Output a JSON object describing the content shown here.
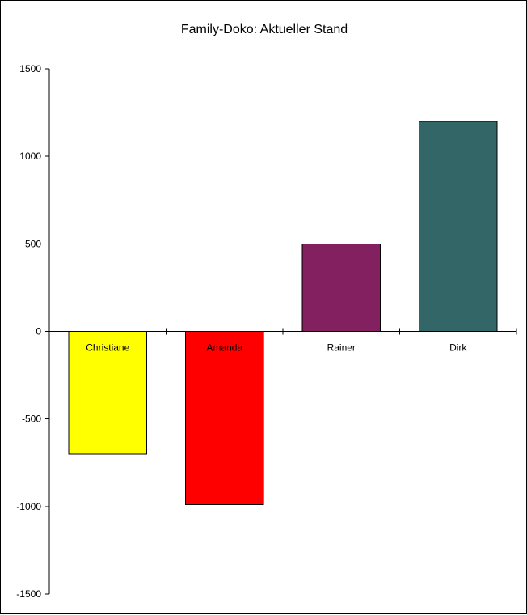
{
  "chart_data": {
    "type": "bar",
    "title": "Family-Doko: Aktueller Stand",
    "xlabel": "",
    "ylabel": "",
    "categories": [
      "Christiane",
      "Amanda",
      "Rainer",
      "Dirk"
    ],
    "values": [
      -700,
      -990,
      500,
      1200
    ],
    "colors": [
      "#ffff00",
      "#ff0000",
      "#822060",
      "#336666"
    ],
    "ylim": [
      -1500,
      1500
    ],
    "yticks": [
      1500,
      1000,
      500,
      0,
      -500,
      -1000,
      -1500
    ],
    "ytick_labels": [
      "1500",
      "1000",
      "500",
      "0",
      "-500",
      "-1000",
      "-1500"
    ],
    "grid": false,
    "legend": "none"
  }
}
